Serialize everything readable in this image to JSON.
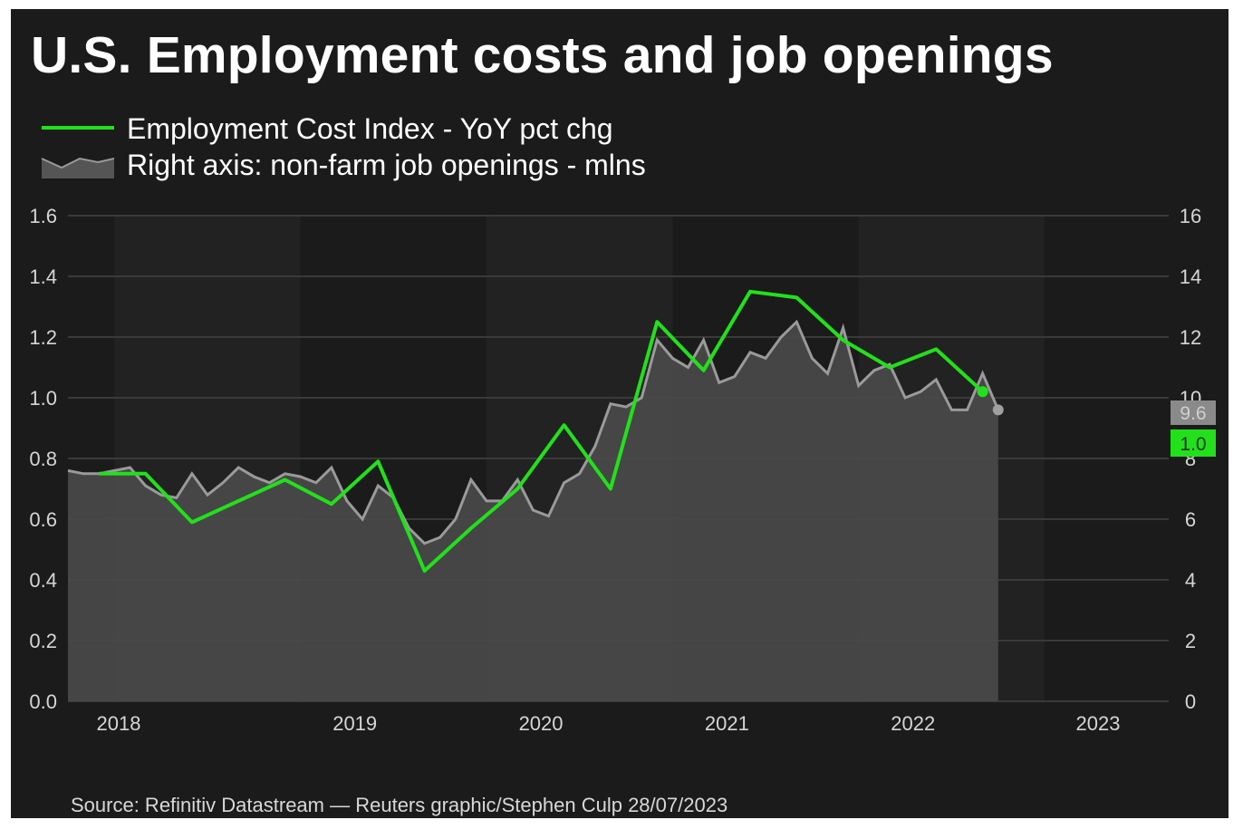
{
  "title": "U.S. Employment costs and job openings",
  "legend": {
    "eci_label": "Employment Cost Index - YoY pct chg",
    "jobs_label": "Right axis: non-farm job openings - mlns"
  },
  "source": "Source: Refinitiv Datastream — Reuters graphic/Stephen Culp 28/07/2023",
  "colors": {
    "background": "#1b1b1b",
    "eci_line": "#22e01c",
    "jobs_area": "#4a4a4a",
    "jobs_line": "#9a9a9a",
    "grid": "#3a3a3a",
    "tick_text": "#d6d6d6"
  },
  "chart_data": {
    "type": "line",
    "x_axis": {
      "type": "date",
      "range": [
        "2017-10",
        "2023-09"
      ],
      "tick_labels": [
        {
          "label": "2018",
          "date": "2018-01"
        },
        {
          "label": "2019",
          "date": "2019-01"
        },
        {
          "label": "2020",
          "date": "2020-01"
        },
        {
          "label": "2021",
          "date": "2021-01"
        },
        {
          "label": "2022",
          "date": "2022-01"
        },
        {
          "label": "2023",
          "date": "2023-01"
        }
      ]
    },
    "left_axis": {
      "ylim": [
        0,
        1.6
      ],
      "ticks": [
        "0.0",
        "0.2",
        "0.4",
        "0.6",
        "0.8",
        "1.0",
        "1.2",
        "1.4",
        "1.6"
      ]
    },
    "right_axis": {
      "ylim": [
        0,
        16
      ],
      "ticks": [
        "0",
        "2",
        "4",
        "6",
        "8",
        "10",
        "12",
        "14",
        "16"
      ]
    },
    "grid": true,
    "series": [
      {
        "name": "Employment Cost Index - YoY pct chg",
        "axis": "left",
        "style": "line",
        "points": [
          {
            "x": "2017-12",
            "y": 0.75
          },
          {
            "x": "2018-03",
            "y": 0.75
          },
          {
            "x": "2018-06",
            "y": 0.59
          },
          {
            "x": "2018-09",
            "y": 0.66
          },
          {
            "x": "2018-12",
            "y": 0.73
          },
          {
            "x": "2019-03",
            "y": 0.65
          },
          {
            "x": "2019-06",
            "y": 0.79
          },
          {
            "x": "2019-09",
            "y": 0.43
          },
          {
            "x": "2019-12",
            "y": 0.57
          },
          {
            "x": "2020-03",
            "y": 0.7
          },
          {
            "x": "2020-06",
            "y": 0.91
          },
          {
            "x": "2020-09",
            "y": 0.7
          },
          {
            "x": "2020-12",
            "y": 1.25
          },
          {
            "x": "2021-03",
            "y": 1.09
          },
          {
            "x": "2021-06",
            "y": 1.35
          },
          {
            "x": "2021-09",
            "y": 1.33
          },
          {
            "x": "2021-12",
            "y": 1.19
          },
          {
            "x": "2022-03",
            "y": 1.1
          },
          {
            "x": "2022-06",
            "y": 1.16
          },
          {
            "x": "2022-09",
            "y": 1.02
          }
        ],
        "last_value_label": "1.0"
      },
      {
        "name": "Right axis: non-farm job openings - mlns",
        "axis": "right",
        "style": "area",
        "points": [
          {
            "x": "2017-10",
            "y": 7.6
          },
          {
            "x": "2017-11",
            "y": 7.5
          },
          {
            "x": "2017-12",
            "y": 7.5
          },
          {
            "x": "2018-01",
            "y": 7.6
          },
          {
            "x": "2018-02",
            "y": 7.7
          },
          {
            "x": "2018-03",
            "y": 7.1
          },
          {
            "x": "2018-04",
            "y": 6.8
          },
          {
            "x": "2018-05",
            "y": 6.7
          },
          {
            "x": "2018-06",
            "y": 7.5
          },
          {
            "x": "2018-07",
            "y": 6.8
          },
          {
            "x": "2018-08",
            "y": 7.2
          },
          {
            "x": "2018-09",
            "y": 7.7
          },
          {
            "x": "2018-10",
            "y": 7.4
          },
          {
            "x": "2018-11",
            "y": 7.2
          },
          {
            "x": "2018-12",
            "y": 7.5
          },
          {
            "x": "2019-01",
            "y": 7.4
          },
          {
            "x": "2019-02",
            "y": 7.2
          },
          {
            "x": "2019-03",
            "y": 7.7
          },
          {
            "x": "2019-04",
            "y": 6.6
          },
          {
            "x": "2019-05",
            "y": 6.0
          },
          {
            "x": "2019-06",
            "y": 7.1
          },
          {
            "x": "2019-07",
            "y": 6.7
          },
          {
            "x": "2019-08",
            "y": 5.7
          },
          {
            "x": "2019-09",
            "y": 5.2
          },
          {
            "x": "2019-10",
            "y": 5.4
          },
          {
            "x": "2019-11",
            "y": 6.0
          },
          {
            "x": "2019-12",
            "y": 7.3
          },
          {
            "x": "2020-01",
            "y": 6.6
          },
          {
            "x": "2020-02",
            "y": 6.6
          },
          {
            "x": "2020-03",
            "y": 7.3
          },
          {
            "x": "2020-04",
            "y": 6.3
          },
          {
            "x": "2020-05",
            "y": 6.1
          },
          {
            "x": "2020-06",
            "y": 7.2
          },
          {
            "x": "2020-07",
            "y": 7.5
          },
          {
            "x": "2020-08",
            "y": 8.4
          },
          {
            "x": "2020-09",
            "y": 9.8
          },
          {
            "x": "2020-10",
            "y": 9.7
          },
          {
            "x": "2020-11",
            "y": 10.0
          },
          {
            "x": "2020-12",
            "y": 11.9
          },
          {
            "x": "2021-01",
            "y": 11.3
          },
          {
            "x": "2021-02",
            "y": 11.0
          },
          {
            "x": "2021-03",
            "y": 11.9
          },
          {
            "x": "2021-04",
            "y": 10.5
          },
          {
            "x": "2021-05",
            "y": 10.7
          },
          {
            "x": "2021-06",
            "y": 11.5
          },
          {
            "x": "2021-07",
            "y": 11.3
          },
          {
            "x": "2021-08",
            "y": 12.0
          },
          {
            "x": "2021-09",
            "y": 12.5
          },
          {
            "x": "2021-10",
            "y": 11.3
          },
          {
            "x": "2021-11",
            "y": 10.8
          },
          {
            "x": "2021-12",
            "y": 12.3
          },
          {
            "x": "2022-01",
            "y": 10.4
          },
          {
            "x": "2022-02",
            "y": 10.9
          },
          {
            "x": "2022-03",
            "y": 11.1
          },
          {
            "x": "2022-04",
            "y": 10.0
          },
          {
            "x": "2022-05",
            "y": 10.2
          },
          {
            "x": "2022-06",
            "y": 10.6
          },
          {
            "x": "2022-07",
            "y": 9.6
          },
          {
            "x": "2022-08",
            "y": 9.6
          },
          {
            "x": "2022-09",
            "y": 10.8
          },
          {
            "x": "2022-10",
            "y": 9.6
          }
        ],
        "last_value_label": "9.6"
      }
    ]
  }
}
